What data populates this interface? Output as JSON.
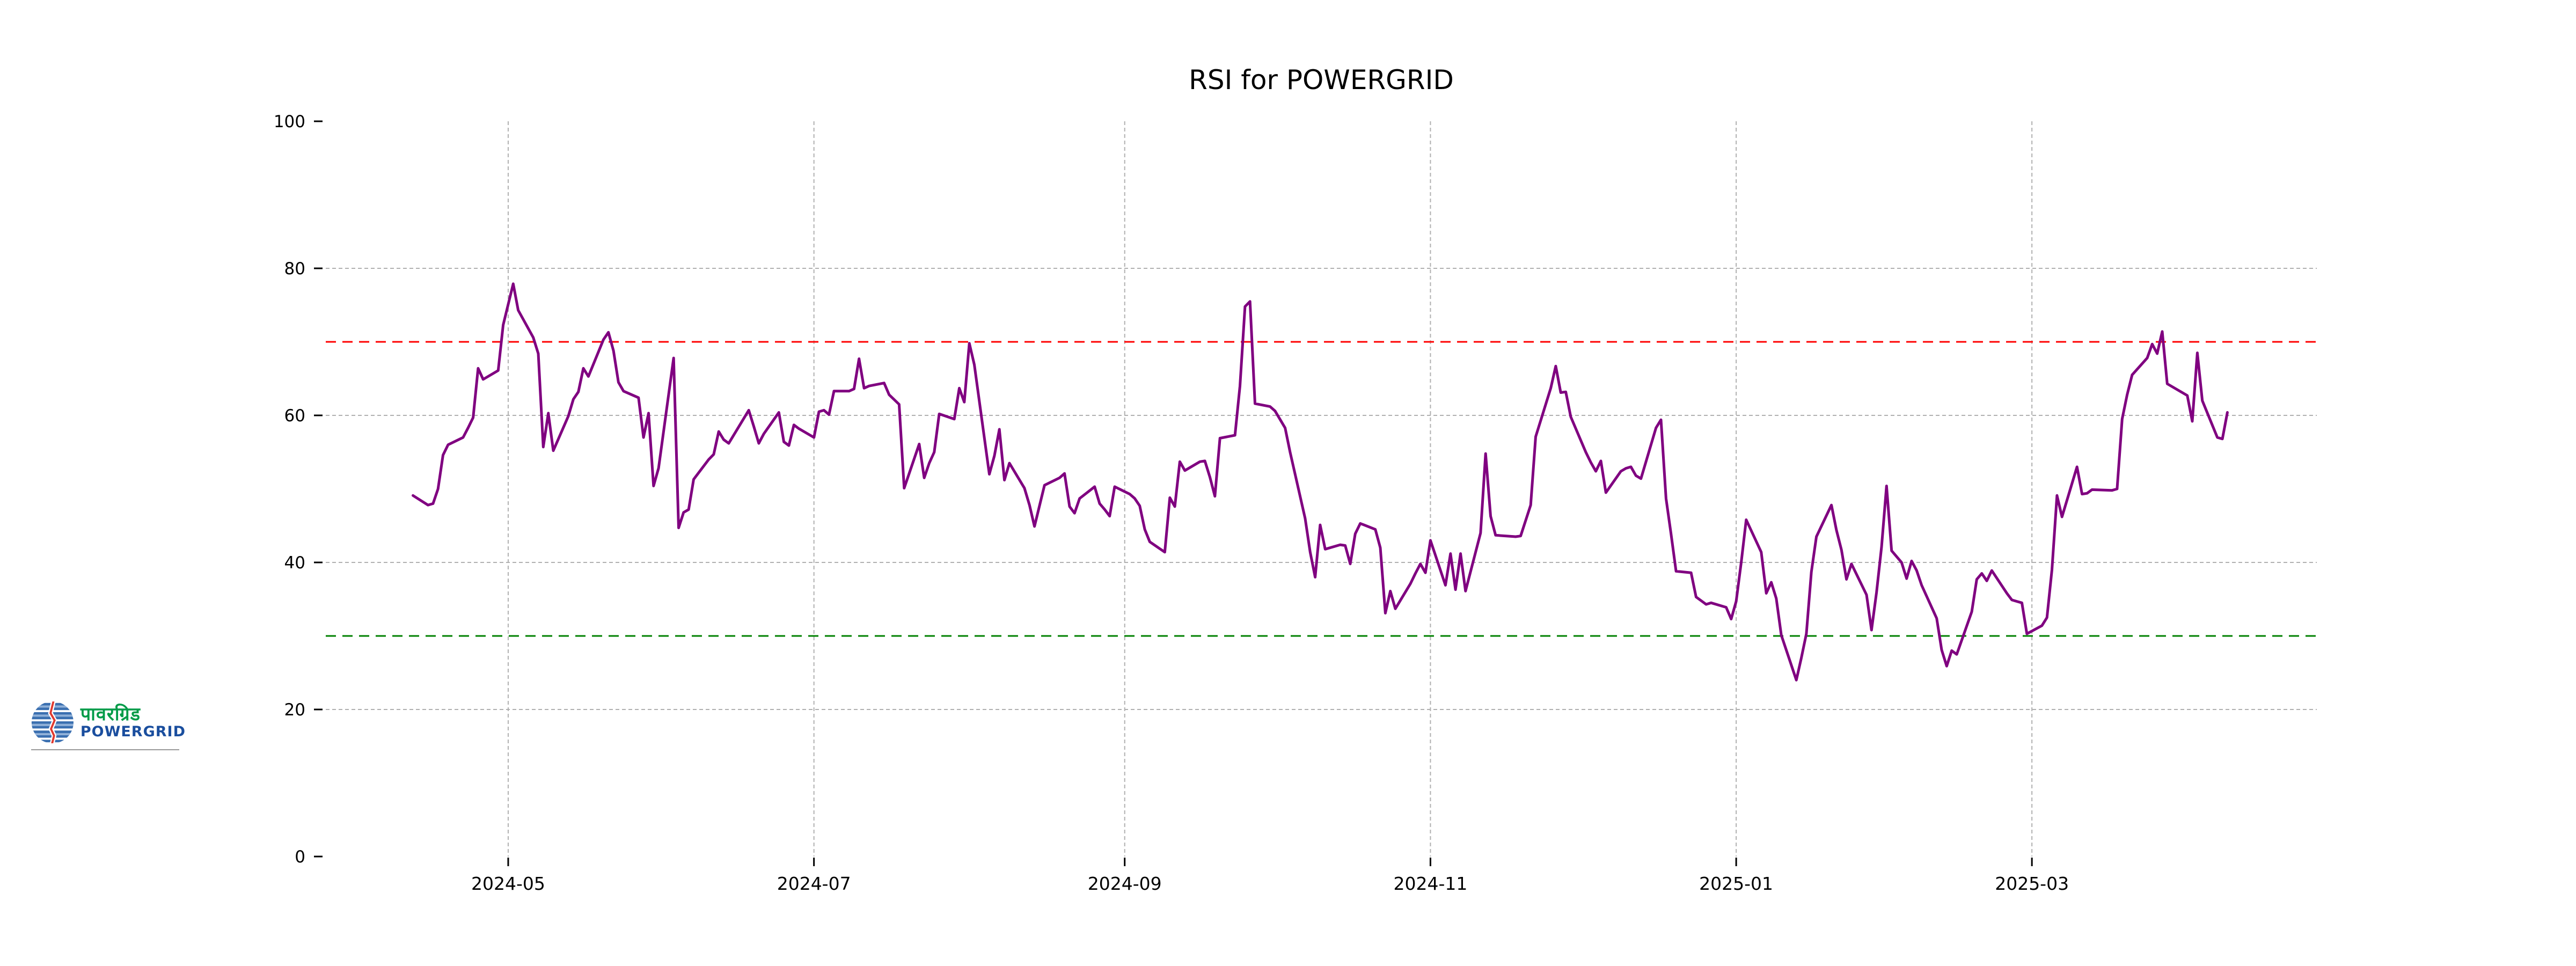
{
  "page": {
    "background_color": "#ffffff"
  },
  "logo": {
    "hindi_text": "पावरग्रिड",
    "latin_text": "POWERGRID",
    "hindi_color": "#009B48",
    "latin_color": "#1a4e9e",
    "globe_blue": "#3a6fb0",
    "globe_light_blue": "#8fb0d8",
    "bolt_red": "#e03a2f"
  },
  "chart_data": {
    "type": "line",
    "title": "RSI for POWERGRID",
    "xlabel": "",
    "ylabel": "",
    "ylim": [
      0,
      100
    ],
    "y_ticks": [
      0,
      20,
      40,
      60,
      80,
      100
    ],
    "x_tick_labels": [
      "2024-05",
      "2024-07",
      "2024-09",
      "2024-11",
      "2025-01",
      "2025-03"
    ],
    "x_tick_dates": [
      "2024-05-01",
      "2024-07-01",
      "2024-09-01",
      "2024-11-01",
      "2025-01-01",
      "2025-03-01"
    ],
    "grid": true,
    "grid_color": "#b0b0b0",
    "legend_position": "none",
    "overbought_level": 70,
    "oversold_level": 30,
    "overbought_color": "#ff0000",
    "oversold_color": "#008000",
    "line_color": "#800080",
    "series": [
      {
        "name": "RSI",
        "points": [
          [
            "2024-04-12",
            49.1
          ],
          [
            "2024-04-15",
            47.8
          ],
          [
            "2024-04-16",
            48.0
          ],
          [
            "2024-04-17",
            50.0
          ],
          [
            "2024-04-18",
            54.6
          ],
          [
            "2024-04-19",
            56.0
          ],
          [
            "2024-04-22",
            57.0
          ],
          [
            "2024-04-23",
            58.3
          ],
          [
            "2024-04-24",
            59.7
          ],
          [
            "2024-04-25",
            66.4
          ],
          [
            "2024-04-26",
            64.9
          ],
          [
            "2024-04-29",
            66.1
          ],
          [
            "2024-04-30",
            72.3
          ],
          [
            "2024-05-02",
            77.9
          ],
          [
            "2024-05-03",
            74.3
          ],
          [
            "2024-05-06",
            70.6
          ],
          [
            "2024-05-07",
            68.4
          ],
          [
            "2024-05-08",
            55.7
          ],
          [
            "2024-05-09",
            60.3
          ],
          [
            "2024-05-10",
            55.2
          ],
          [
            "2024-05-13",
            59.9
          ],
          [
            "2024-05-14",
            62.2
          ],
          [
            "2024-05-15",
            63.2
          ],
          [
            "2024-05-16",
            66.4
          ],
          [
            "2024-05-17",
            65.3
          ],
          [
            "2024-05-20",
            70.3
          ],
          [
            "2024-05-21",
            71.3
          ],
          [
            "2024-05-22",
            68.8
          ],
          [
            "2024-05-23",
            64.5
          ],
          [
            "2024-05-24",
            63.3
          ],
          [
            "2024-05-27",
            62.4
          ],
          [
            "2024-05-28",
            57.0
          ],
          [
            "2024-05-29",
            60.3
          ],
          [
            "2024-05-30",
            50.4
          ],
          [
            "2024-05-31",
            52.8
          ],
          [
            "2024-06-03",
            67.8
          ],
          [
            "2024-06-04",
            44.7
          ],
          [
            "2024-06-05",
            46.8
          ],
          [
            "2024-06-06",
            47.2
          ],
          [
            "2024-06-07",
            51.3
          ],
          [
            "2024-06-10",
            54.0
          ],
          [
            "2024-06-11",
            54.7
          ],
          [
            "2024-06-12",
            57.8
          ],
          [
            "2024-06-13",
            56.7
          ],
          [
            "2024-06-14",
            56.2
          ],
          [
            "2024-06-18",
            60.7
          ],
          [
            "2024-06-19",
            58.5
          ],
          [
            "2024-06-20",
            56.2
          ],
          [
            "2024-06-21",
            57.5
          ],
          [
            "2024-06-24",
            60.4
          ],
          [
            "2024-06-25",
            56.4
          ],
          [
            "2024-06-26",
            55.9
          ],
          [
            "2024-06-27",
            58.7
          ],
          [
            "2024-06-28",
            58.2
          ],
          [
            "2024-07-01",
            57.0
          ],
          [
            "2024-07-02",
            60.5
          ],
          [
            "2024-07-03",
            60.7
          ],
          [
            "2024-07-04",
            60.1
          ],
          [
            "2024-07-05",
            63.3
          ],
          [
            "2024-07-08",
            63.3
          ],
          [
            "2024-07-09",
            63.6
          ],
          [
            "2024-07-10",
            67.7
          ],
          [
            "2024-07-11",
            63.7
          ],
          [
            "2024-07-12",
            64.0
          ],
          [
            "2024-07-15",
            64.4
          ],
          [
            "2024-07-16",
            62.8
          ],
          [
            "2024-07-18",
            61.5
          ],
          [
            "2024-07-19",
            50.1
          ],
          [
            "2024-07-22",
            56.1
          ],
          [
            "2024-07-23",
            51.5
          ],
          [
            "2024-07-24",
            53.5
          ],
          [
            "2024-07-25",
            55.0
          ],
          [
            "2024-07-26",
            60.2
          ],
          [
            "2024-07-29",
            59.5
          ],
          [
            "2024-07-30",
            63.7
          ],
          [
            "2024-07-31",
            61.8
          ],
          [
            "2024-08-01",
            69.8
          ],
          [
            "2024-08-02",
            66.9
          ],
          [
            "2024-08-05",
            52.0
          ],
          [
            "2024-08-06",
            54.5
          ],
          [
            "2024-08-07",
            58.1
          ],
          [
            "2024-08-08",
            51.2
          ],
          [
            "2024-08-09",
            53.5
          ],
          [
            "2024-08-12",
            50.1
          ],
          [
            "2024-08-13",
            47.8
          ],
          [
            "2024-08-14",
            44.9
          ],
          [
            "2024-08-16",
            50.5
          ],
          [
            "2024-08-19",
            51.5
          ],
          [
            "2024-08-20",
            52.1
          ],
          [
            "2024-08-21",
            47.6
          ],
          [
            "2024-08-22",
            46.7
          ],
          [
            "2024-08-23",
            48.7
          ],
          [
            "2024-08-26",
            50.3
          ],
          [
            "2024-08-27",
            48.0
          ],
          [
            "2024-08-28",
            47.2
          ],
          [
            "2024-08-29",
            46.3
          ],
          [
            "2024-08-30",
            50.3
          ],
          [
            "2024-09-02",
            49.3
          ],
          [
            "2024-09-03",
            48.7
          ],
          [
            "2024-09-04",
            47.7
          ],
          [
            "2024-09-05",
            44.5
          ],
          [
            "2024-09-06",
            42.8
          ],
          [
            "2024-09-09",
            41.4
          ],
          [
            "2024-09-10",
            48.8
          ],
          [
            "2024-09-11",
            47.6
          ],
          [
            "2024-09-12",
            53.7
          ],
          [
            "2024-09-13",
            52.5
          ],
          [
            "2024-09-16",
            53.7
          ],
          [
            "2024-09-17",
            53.8
          ],
          [
            "2024-09-18",
            51.6
          ],
          [
            "2024-09-19",
            49.0
          ],
          [
            "2024-09-20",
            56.9
          ],
          [
            "2024-09-23",
            57.3
          ],
          [
            "2024-09-24",
            64.0
          ],
          [
            "2024-09-25",
            74.8
          ],
          [
            "2024-09-26",
            75.5
          ],
          [
            "2024-09-27",
            61.6
          ],
          [
            "2024-09-30",
            61.2
          ],
          [
            "2024-10-01",
            60.6
          ],
          [
            "2024-10-03",
            58.3
          ],
          [
            "2024-10-04",
            55.0
          ],
          [
            "2024-10-07",
            46.0
          ],
          [
            "2024-10-08",
            41.4
          ],
          [
            "2024-10-09",
            38.0
          ],
          [
            "2024-10-10",
            45.1
          ],
          [
            "2024-10-11",
            41.8
          ],
          [
            "2024-10-14",
            42.4
          ],
          [
            "2024-10-15",
            42.3
          ],
          [
            "2024-10-16",
            39.8
          ],
          [
            "2024-10-17",
            43.9
          ],
          [
            "2024-10-18",
            45.3
          ],
          [
            "2024-10-21",
            44.5
          ],
          [
            "2024-10-22",
            42.0
          ],
          [
            "2024-10-23",
            33.1
          ],
          [
            "2024-10-24",
            36.1
          ],
          [
            "2024-10-25",
            33.7
          ],
          [
            "2024-10-28",
            37.1
          ],
          [
            "2024-10-29",
            38.5
          ],
          [
            "2024-10-30",
            39.8
          ],
          [
            "2024-10-31",
            38.6
          ],
          [
            "2024-11-01",
            43.0
          ],
          [
            "2024-11-04",
            36.9
          ],
          [
            "2024-11-05",
            41.2
          ],
          [
            "2024-11-06",
            36.3
          ],
          [
            "2024-11-07",
            41.2
          ],
          [
            "2024-11-08",
            36.1
          ],
          [
            "2024-11-11",
            44.0
          ],
          [
            "2024-11-12",
            54.8
          ],
          [
            "2024-11-13",
            46.3
          ],
          [
            "2024-11-14",
            43.7
          ],
          [
            "2024-11-18",
            43.5
          ],
          [
            "2024-11-19",
            43.6
          ],
          [
            "2024-11-21",
            47.8
          ],
          [
            "2024-11-22",
            57.1
          ],
          [
            "2024-11-25",
            63.7
          ],
          [
            "2024-11-26",
            66.7
          ],
          [
            "2024-11-27",
            63.1
          ],
          [
            "2024-11-28",
            63.2
          ],
          [
            "2024-11-29",
            59.8
          ],
          [
            "2024-12-02",
            55.0
          ],
          [
            "2024-12-03",
            53.6
          ],
          [
            "2024-12-04",
            52.4
          ],
          [
            "2024-12-05",
            53.8
          ],
          [
            "2024-12-06",
            49.5
          ],
          [
            "2024-12-09",
            52.4
          ],
          [
            "2024-12-10",
            52.8
          ],
          [
            "2024-12-11",
            53.0
          ],
          [
            "2024-12-12",
            51.8
          ],
          [
            "2024-12-13",
            51.4
          ],
          [
            "2024-12-16",
            58.3
          ],
          [
            "2024-12-17",
            59.4
          ],
          [
            "2024-12-18",
            48.7
          ],
          [
            "2024-12-19",
            43.9
          ],
          [
            "2024-12-20",
            38.8
          ],
          [
            "2024-12-23",
            38.6
          ],
          [
            "2024-12-24",
            35.3
          ],
          [
            "2024-12-26",
            34.3
          ],
          [
            "2024-12-27",
            34.5
          ],
          [
            "2024-12-30",
            33.9
          ],
          [
            "2024-12-31",
            32.3
          ],
          [
            "2025-01-01",
            34.7
          ],
          [
            "2025-01-02",
            40.0
          ],
          [
            "2025-01-03",
            45.8
          ],
          [
            "2025-01-06",
            41.4
          ],
          [
            "2025-01-07",
            35.8
          ],
          [
            "2025-01-08",
            37.3
          ],
          [
            "2025-01-09",
            35.1
          ],
          [
            "2025-01-10",
            30.1
          ],
          [
            "2025-01-13",
            24.0
          ],
          [
            "2025-01-14",
            27.0
          ],
          [
            "2025-01-15",
            30.3
          ],
          [
            "2025-01-16",
            38.7
          ],
          [
            "2025-01-17",
            43.5
          ],
          [
            "2025-01-20",
            47.8
          ],
          [
            "2025-01-21",
            44.4
          ],
          [
            "2025-01-22",
            41.7
          ],
          [
            "2025-01-23",
            37.7
          ],
          [
            "2025-01-24",
            39.8
          ],
          [
            "2025-01-27",
            35.6
          ],
          [
            "2025-01-28",
            30.8
          ],
          [
            "2025-01-29",
            35.9
          ],
          [
            "2025-01-30",
            42.1
          ],
          [
            "2025-01-31",
            50.4
          ],
          [
            "2025-02-01",
            41.6
          ],
          [
            "2025-02-03",
            40.0
          ],
          [
            "2025-02-04",
            37.8
          ],
          [
            "2025-02-05",
            40.2
          ],
          [
            "2025-02-06",
            38.9
          ],
          [
            "2025-02-07",
            36.9
          ],
          [
            "2025-02-10",
            32.4
          ],
          [
            "2025-02-11",
            28.1
          ],
          [
            "2025-02-12",
            25.9
          ],
          [
            "2025-02-13",
            28.0
          ],
          [
            "2025-02-14",
            27.5
          ],
          [
            "2025-02-17",
            33.3
          ],
          [
            "2025-02-18",
            37.7
          ],
          [
            "2025-02-19",
            38.5
          ],
          [
            "2025-02-20",
            37.5
          ],
          [
            "2025-02-21",
            38.9
          ],
          [
            "2025-02-24",
            35.8
          ],
          [
            "2025-02-25",
            34.9
          ],
          [
            "2025-02-26",
            34.7
          ],
          [
            "2025-02-27",
            34.5
          ],
          [
            "2025-02-28",
            30.3
          ],
          [
            "2025-03-03",
            31.4
          ],
          [
            "2025-03-04",
            32.5
          ],
          [
            "2025-03-05",
            39.0
          ],
          [
            "2025-03-06",
            49.1
          ],
          [
            "2025-03-07",
            46.2
          ],
          [
            "2025-03-10",
            53.0
          ],
          [
            "2025-03-11",
            49.3
          ],
          [
            "2025-03-12",
            49.4
          ],
          [
            "2025-03-13",
            49.9
          ],
          [
            "2025-03-17",
            49.8
          ],
          [
            "2025-03-18",
            50.0
          ],
          [
            "2025-03-19",
            59.5
          ],
          [
            "2025-03-20",
            62.8
          ],
          [
            "2025-03-21",
            65.5
          ],
          [
            "2025-03-24",
            67.8
          ],
          [
            "2025-03-25",
            69.7
          ],
          [
            "2025-03-26",
            68.4
          ],
          [
            "2025-03-27",
            71.4
          ],
          [
            "2025-03-28",
            64.3
          ],
          [
            "2025-04-01",
            62.7
          ],
          [
            "2025-04-02",
            59.2
          ],
          [
            "2025-04-03",
            68.5
          ],
          [
            "2025-04-04",
            62.0
          ],
          [
            "2025-04-07",
            57.0
          ],
          [
            "2025-04-08",
            56.8
          ],
          [
            "2025-04-09",
            60.4
          ]
        ]
      }
    ]
  }
}
